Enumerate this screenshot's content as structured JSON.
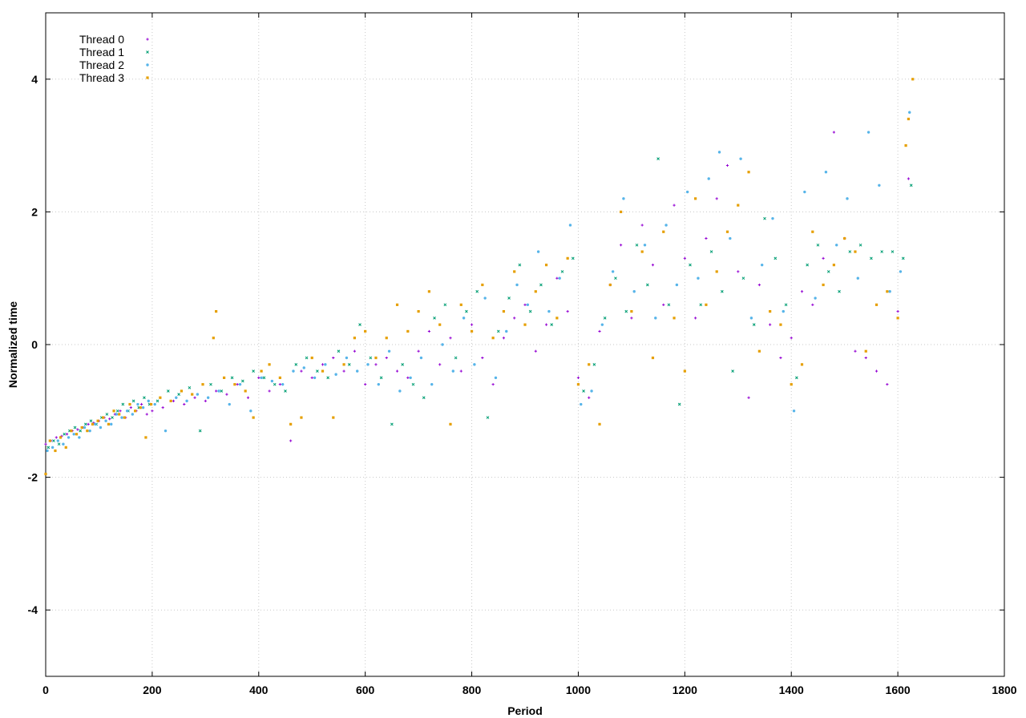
{
  "chart_data": {
    "type": "scatter",
    "title": "",
    "xlabel": "Period",
    "ylabel": "Normalized time",
    "xlim": [
      0,
      1800
    ],
    "ylim": [
      -5,
      5
    ],
    "xticks": [
      0,
      200,
      400,
      600,
      800,
      1000,
      1200,
      1400,
      1600,
      1800
    ],
    "yticks": [
      -4,
      -2,
      0,
      2,
      4
    ],
    "grid": true,
    "legend_position": "top-left",
    "series": [
      {
        "name": "Thread 0",
        "color": "#9400d3",
        "marker": "plus",
        "x": [
          0,
          10,
          20,
          30,
          40,
          50,
          60,
          70,
          80,
          90,
          100,
          110,
          120,
          130,
          140,
          150,
          160,
          170,
          180,
          190,
          200,
          220,
          240,
          260,
          280,
          300,
          320,
          340,
          360,
          380,
          400,
          420,
          440,
          460,
          480,
          500,
          520,
          540,
          560,
          580,
          600,
          620,
          640,
          660,
          680,
          700,
          720,
          740,
          760,
          780,
          800,
          820,
          840,
          860,
          880,
          900,
          920,
          940,
          960,
          980,
          1000,
          1020,
          1040,
          1060,
          1080,
          1100,
          1120,
          1140,
          1160,
          1180,
          1200,
          1220,
          1240,
          1260,
          1280,
          1300,
          1320,
          1340,
          1360,
          1380,
          1400,
          1420,
          1440,
          1460,
          1480,
          1500,
          1520,
          1540,
          1560,
          1580,
          1600,
          1620
        ],
        "y": [
          -1.5,
          -1.45,
          -1.4,
          -1.38,
          -1.35,
          -1.3,
          -1.28,
          -1.25,
          -1.2,
          -1.18,
          -1.15,
          -1.1,
          -1.12,
          -1.05,
          -1.0,
          -1.1,
          -0.95,
          -1.0,
          -0.9,
          -1.05,
          -1.0,
          -0.95,
          -0.85,
          -0.9,
          -0.8,
          -0.85,
          -0.7,
          -0.75,
          -0.6,
          -0.8,
          -0.5,
          -0.7,
          -0.6,
          -1.45,
          -0.4,
          -0.5,
          -0.3,
          -0.2,
          -0.4,
          -0.1,
          -0.6,
          -0.3,
          -0.2,
          -0.4,
          -0.5,
          -0.1,
          0.2,
          -0.3,
          0.1,
          -0.4,
          0.3,
          -0.2,
          -0.6,
          0.1,
          0.4,
          0.6,
          -0.1,
          0.3,
          1.0,
          0.5,
          -0.5,
          -0.8,
          0.2,
          0.9,
          1.5,
          0.4,
          1.8,
          1.2,
          0.6,
          2.1,
          1.3,
          0.4,
          1.6,
          2.2,
          2.7,
          1.1,
          -0.8,
          0.9,
          0.3,
          -0.2,
          0.1,
          0.8,
          0.6,
          1.3,
          3.2,
          1.6,
          -0.1,
          -0.2,
          -0.4,
          -0.6,
          0.5,
          2.5
        ]
      },
      {
        "name": "Thread 1",
        "color": "#009e73",
        "marker": "cross",
        "x": [
          5,
          15,
          25,
          35,
          45,
          55,
          65,
          75,
          85,
          95,
          105,
          115,
          125,
          135,
          145,
          155,
          165,
          175,
          185,
          195,
          210,
          230,
          250,
          270,
          290,
          310,
          330,
          350,
          370,
          390,
          410,
          430,
          450,
          470,
          490,
          510,
          530,
          550,
          570,
          590,
          610,
          630,
          650,
          670,
          690,
          710,
          730,
          750,
          770,
          790,
          810,
          830,
          850,
          870,
          890,
          910,
          930,
          950,
          970,
          990,
          1010,
          1030,
          1050,
          1070,
          1090,
          1110,
          1130,
          1150,
          1170,
          1190,
          1210,
          1230,
          1250,
          1270,
          1290,
          1310,
          1330,
          1350,
          1370,
          1390,
          1410,
          1430,
          1450,
          1470,
          1490,
          1510,
          1530,
          1550,
          1570,
          1590,
          1610,
          1625
        ],
        "y": [
          -1.55,
          -1.45,
          -1.5,
          -1.35,
          -1.3,
          -1.25,
          -1.3,
          -1.2,
          -1.15,
          -1.2,
          -1.1,
          -1.05,
          -1.1,
          -1.0,
          -0.9,
          -1.0,
          -0.85,
          -0.95,
          -0.8,
          -0.9,
          -0.85,
          -0.7,
          -0.75,
          -0.65,
          -1.3,
          -0.6,
          -0.7,
          -0.5,
          -0.55,
          -0.4,
          -0.5,
          -0.6,
          -0.7,
          -0.3,
          -0.2,
          -0.4,
          -0.5,
          -0.1,
          -0.3,
          0.3,
          -0.2,
          -0.5,
          -1.2,
          -0.3,
          -0.6,
          -0.8,
          0.4,
          0.6,
          -0.2,
          0.5,
          0.8,
          -1.1,
          0.2,
          0.7,
          1.2,
          0.5,
          0.9,
          0.3,
          1.1,
          1.3,
          -0.7,
          -0.3,
          0.4,
          1.0,
          0.5,
          1.5,
          0.9,
          2.8,
          0.6,
          -0.9,
          1.2,
          0.6,
          1.4,
          0.8,
          -0.4,
          1.0,
          0.3,
          1.9,
          1.3,
          0.6,
          -0.5,
          1.2,
          1.5,
          1.1,
          0.8,
          1.4,
          1.5,
          1.3,
          1.4,
          1.4,
          1.3,
          2.4
        ]
      },
      {
        "name": "Thread 2",
        "color": "#56b4e9",
        "marker": "star",
        "x": [
          3,
          13,
          23,
          33,
          43,
          53,
          63,
          73,
          83,
          93,
          103,
          113,
          123,
          133,
          143,
          153,
          163,
          173,
          183,
          193,
          205,
          225,
          245,
          265,
          285,
          305,
          325,
          345,
          365,
          385,
          405,
          425,
          445,
          465,
          485,
          505,
          525,
          545,
          565,
          585,
          605,
          625,
          645,
          665,
          685,
          705,
          725,
          745,
          765,
          785,
          805,
          825,
          845,
          865,
          885,
          905,
          925,
          945,
          965,
          985,
          1005,
          1025,
          1045,
          1065,
          1085,
          1105,
          1125,
          1145,
          1165,
          1185,
          1205,
          1225,
          1245,
          1265,
          1285,
          1305,
          1325,
          1345,
          1365,
          1385,
          1405,
          1425,
          1445,
          1465,
          1485,
          1505,
          1525,
          1545,
          1565,
          1585,
          1605,
          1622
        ],
        "y": [
          -1.6,
          -1.55,
          -1.45,
          -1.5,
          -1.4,
          -1.35,
          -1.4,
          -1.25,
          -1.3,
          -1.2,
          -1.25,
          -1.15,
          -1.2,
          -1.05,
          -1.1,
          -1.0,
          -1.05,
          -0.9,
          -0.95,
          -0.85,
          -0.9,
          -1.3,
          -0.8,
          -0.85,
          -0.75,
          -0.8,
          -0.7,
          -0.9,
          -0.6,
          -1.0,
          -0.5,
          -0.55,
          -0.6,
          -0.4,
          -0.35,
          -0.5,
          -0.3,
          -0.45,
          -0.2,
          -0.4,
          -0.3,
          -0.6,
          -0.1,
          -0.7,
          -0.5,
          -0.2,
          -0.6,
          0.0,
          -0.4,
          0.4,
          -0.3,
          0.7,
          -0.5,
          0.2,
          0.9,
          0.6,
          1.4,
          0.5,
          1.0,
          1.8,
          -0.9,
          -0.7,
          0.3,
          1.1,
          2.2,
          0.8,
          1.5,
          0.4,
          1.8,
          0.9,
          2.3,
          1.0,
          2.5,
          2.9,
          1.6,
          2.8,
          0.4,
          1.2,
          1.9,
          0.5,
          -1.0,
          2.3,
          0.7,
          2.6,
          1.5,
          2.2,
          1.0,
          3.2,
          2.4,
          0.8,
          1.1,
          3.5
        ]
      },
      {
        "name": "Thread 3",
        "color": "#e69f00",
        "marker": "square",
        "x": [
          0,
          8,
          18,
          28,
          38,
          48,
          58,
          68,
          78,
          88,
          98,
          108,
          118,
          128,
          138,
          148,
          158,
          168,
          178,
          188,
          198,
          215,
          235,
          255,
          275,
          295,
          315,
          320,
          335,
          355,
          375,
          390,
          405,
          420,
          440,
          460,
          480,
          500,
          520,
          540,
          560,
          580,
          600,
          620,
          640,
          660,
          680,
          700,
          720,
          740,
          760,
          780,
          800,
          820,
          840,
          860,
          880,
          900,
          920,
          940,
          960,
          980,
          1000,
          1020,
          1040,
          1060,
          1080,
          1100,
          1120,
          1140,
          1160,
          1180,
          1200,
          1220,
          1240,
          1260,
          1280,
          1300,
          1320,
          1340,
          1360,
          1380,
          1400,
          1420,
          1440,
          1460,
          1480,
          1500,
          1520,
          1540,
          1560,
          1580,
          1600,
          1615,
          1620,
          1628
        ],
        "y": [
          -1.95,
          -1.45,
          -1.6,
          -1.4,
          -1.55,
          -1.3,
          -1.35,
          -1.25,
          -1.3,
          -1.2,
          -1.15,
          -1.1,
          -1.2,
          -1.0,
          -1.05,
          -1.1,
          -0.9,
          -1.0,
          -0.95,
          -1.4,
          -0.9,
          -0.8,
          -0.85,
          -0.7,
          -0.75,
          -0.6,
          0.1,
          0.5,
          -0.5,
          -0.6,
          -0.7,
          -1.1,
          -0.4,
          -0.3,
          -0.5,
          -1.2,
          -1.1,
          -0.2,
          -0.4,
          -1.1,
          -0.3,
          0.1,
          0.2,
          -0.2,
          0.1,
          0.6,
          0.2,
          0.5,
          0.8,
          0.3,
          -1.2,
          0.6,
          0.2,
          0.9,
          0.1,
          0.5,
          1.1,
          0.3,
          0.8,
          1.2,
          0.4,
          1.3,
          -0.6,
          -0.3,
          -1.2,
          0.9,
          2.0,
          0.5,
          1.4,
          -0.2,
          1.7,
          0.4,
          -0.4,
          2.2,
          0.6,
          1.1,
          1.7,
          2.1,
          2.6,
          -0.1,
          0.5,
          0.3,
          -0.6,
          -0.3,
          1.7,
          0.9,
          1.2,
          1.6,
          1.4,
          -0.1,
          0.6,
          0.8,
          0.4,
          3.0,
          3.4,
          4.0
        ]
      }
    ]
  }
}
